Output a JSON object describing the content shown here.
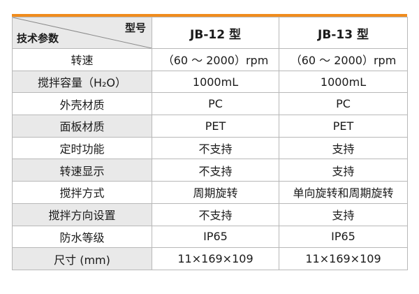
{
  "header": {
    "corner_top": "型号",
    "corner_bottom": "技术参数",
    "col1": "JB-12 型",
    "col2": "JB-13 型"
  },
  "rows": [
    {
      "label": "转速",
      "v1": "（60 ～ 2000）rpm",
      "v2": "（60 ～ 2000）rpm"
    },
    {
      "label": "搅拌容量（H₂O）",
      "v1": "1000mL",
      "v2": "1000mL"
    },
    {
      "label": "外壳材质",
      "v1": "PC",
      "v2": "PC"
    },
    {
      "label": "面板材质",
      "v1": "PET",
      "v2": "PET"
    },
    {
      "label": "定时功能",
      "v1": "不支持",
      "v2": "支持"
    },
    {
      "label": "转速显示",
      "v1": "不支持",
      "v2": "支持"
    },
    {
      "label": "搅拌方式",
      "v1": "周期旋转",
      "v2": "单向旋转和周期旋转"
    },
    {
      "label": "搅拌方向设置",
      "v1": "不支持",
      "v2": "支持"
    },
    {
      "label": "防水等级",
      "v1": "IP65",
      "v2": "IP65"
    },
    {
      "label": "尺寸 (mm)",
      "v1": "11×169×109",
      "v2": "11×169×109"
    }
  ]
}
